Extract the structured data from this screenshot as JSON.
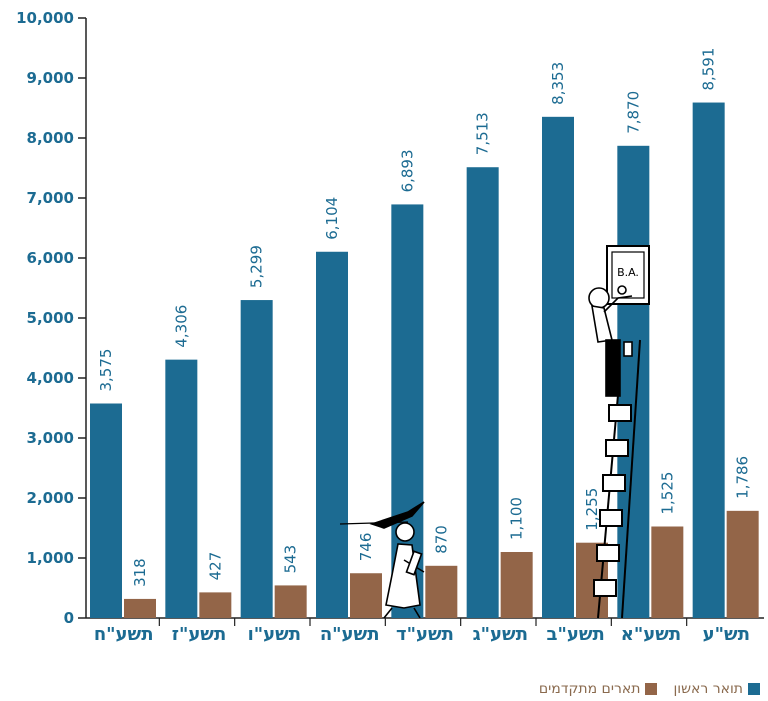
{
  "colors": {
    "first": "#1c6b92",
    "advanced": "#936548",
    "axis": "#222222",
    "text": "#1c6b92"
  },
  "legend": {
    "first_label": "תואר ראשון",
    "advanced_label": "תארים מתקדמים"
  },
  "chart_data": {
    "type": "bar",
    "categories": [
      "תשע\"ח",
      "תשע\"ז",
      "תשע\"ו",
      "תשע\"ה",
      "תשע\"ד",
      "תשע\"ג",
      "תשע\"ב",
      "תשע\"א",
      "תש\"ע"
    ],
    "series": [
      {
        "name": "תואר ראשון",
        "values": [
          3575,
          4306,
          5299,
          6104,
          6893,
          7513,
          8353,
          7870,
          8591
        ],
        "labels": [
          "3,575",
          "4,306",
          "5,299",
          "6,104",
          "6,893",
          "7,513",
          "8,353",
          "7,870",
          "8,591"
        ]
      },
      {
        "name": "תארים מתקדמים",
        "values": [
          318,
          427,
          543,
          746,
          870,
          1100,
          1255,
          1525,
          1786
        ],
        "labels": [
          "318",
          "427",
          "543",
          "746",
          "870",
          "1,100",
          "1,255",
          "1,525",
          "1,786"
        ]
      }
    ],
    "yticks": [
      "0",
      "1,000",
      "2,000",
      "3,000",
      "4,000",
      "5,000",
      "6,000",
      "7,000",
      "8,000",
      "9,000",
      "10,000"
    ],
    "ylim": [
      0,
      10000
    ],
    "illustration_text": "B.A."
  }
}
